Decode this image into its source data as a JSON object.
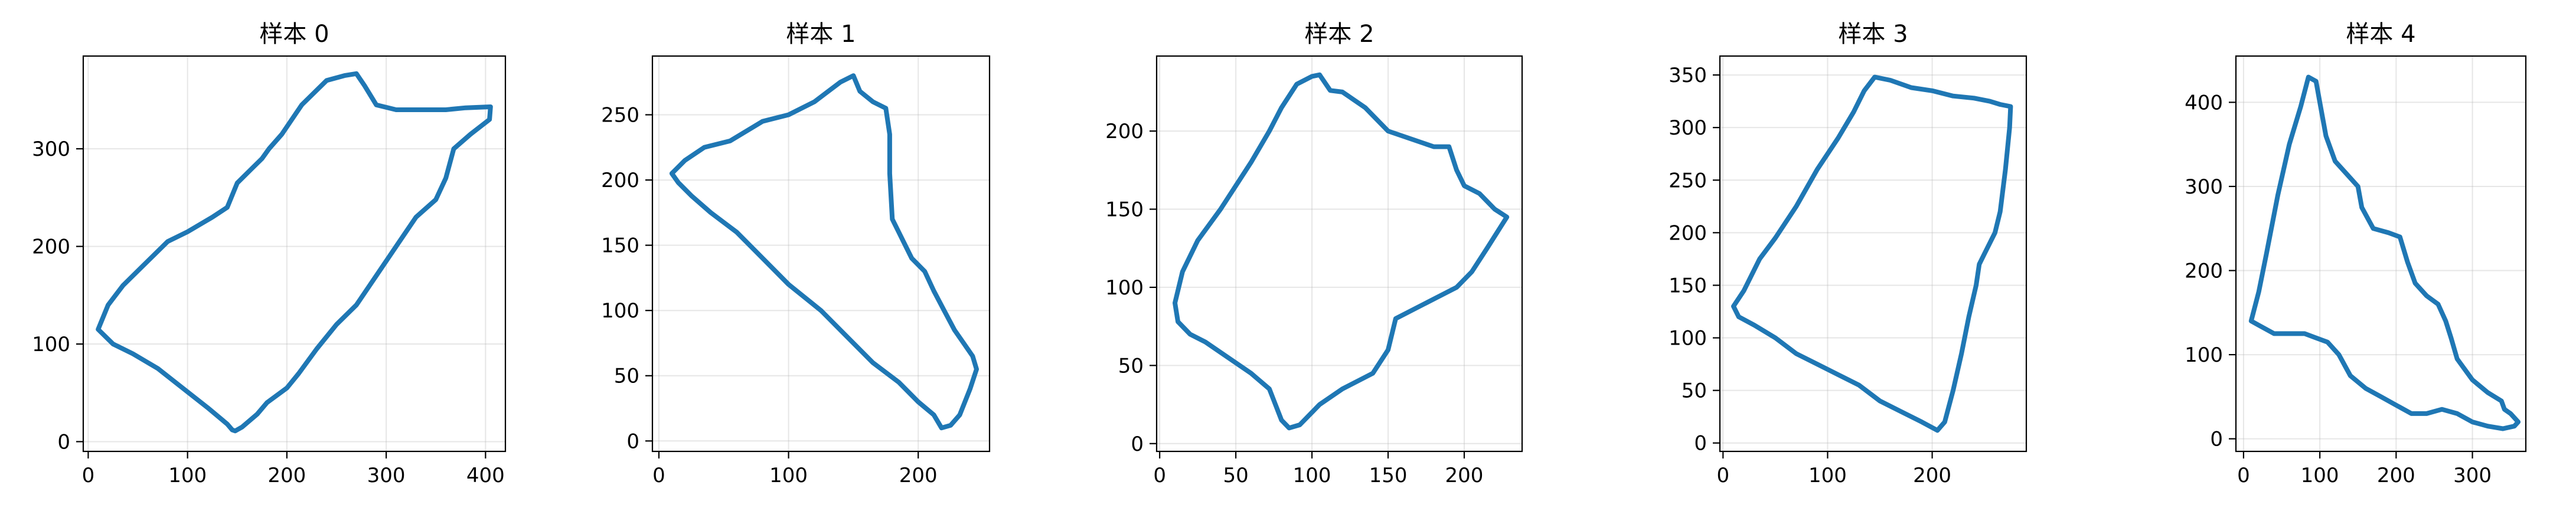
{
  "figure": {
    "accent_color": "#1f77b4"
  },
  "chart_data": [
    {
      "type": "line",
      "title": "样本 0",
      "xlim": [
        -5,
        420
      ],
      "ylim": [
        -10,
        395
      ],
      "xticks": [
        0,
        100,
        200,
        300,
        400
      ],
      "yticks": [
        0,
        100,
        200,
        300
      ],
      "grid": true,
      "series": [
        {
          "color": "#1f77b4",
          "x": [
            10,
            20,
            35,
            55,
            80,
            100,
            125,
            140,
            150,
            165,
            175,
            182,
            195,
            215,
            240,
            258,
            270,
            278,
            290,
            310,
            330,
            360,
            380,
            405,
            404,
            385,
            368,
            360,
            350,
            330,
            310,
            290,
            270,
            250,
            230,
            212,
            200,
            180,
            170,
            155,
            148,
            145,
            140,
            120,
            95,
            70,
            45,
            25,
            10
          ],
          "y": [
            115,
            140,
            160,
            180,
            205,
            215,
            230,
            240,
            265,
            280,
            290,
            300,
            315,
            345,
            370,
            375,
            377,
            365,
            345,
            340,
            340,
            340,
            342,
            343,
            330,
            315,
            300,
            270,
            248,
            230,
            200,
            170,
            140,
            120,
            95,
            70,
            55,
            40,
            28,
            15,
            11,
            12,
            18,
            35,
            55,
            75,
            90,
            100,
            115
          ]
        }
      ]
    },
    {
      "type": "line",
      "title": "样本 1",
      "xlim": [
        -5,
        255
      ],
      "ylim": [
        -8,
        295
      ],
      "xticks": [
        0,
        100,
        200
      ],
      "yticks": [
        0,
        50,
        100,
        150,
        200,
        250
      ],
      "grid": true,
      "series": [
        {
          "color": "#1f77b4",
          "x": [
            10,
            20,
            35,
            55,
            80,
            100,
            120,
            140,
            150,
            155,
            165,
            175,
            178,
            178,
            180,
            185,
            195,
            205,
            212,
            220,
            228,
            235,
            242,
            245,
            240,
            232,
            225,
            218,
            212,
            200,
            185,
            165,
            145,
            125,
            100,
            80,
            60,
            40,
            25,
            15,
            10
          ],
          "y": [
            205,
            215,
            225,
            230,
            245,
            250,
            260,
            275,
            280,
            268,
            260,
            255,
            235,
            205,
            170,
            160,
            140,
            130,
            115,
            100,
            85,
            75,
            65,
            55,
            40,
            20,
            12,
            10,
            20,
            30,
            45,
            60,
            80,
            100,
            120,
            140,
            160,
            175,
            188,
            198,
            205
          ]
        }
      ]
    },
    {
      "type": "line",
      "title": "样本 2",
      "xlim": [
        -2,
        238
      ],
      "ylim": [
        -5,
        248
      ],
      "xticks": [
        0,
        50,
        100,
        150,
        200
      ],
      "yticks": [
        0,
        50,
        100,
        150,
        200
      ],
      "grid": true,
      "series": [
        {
          "color": "#1f77b4",
          "x": [
            10,
            15,
            25,
            40,
            50,
            60,
            72,
            80,
            90,
            100,
            105,
            112,
            120,
            135,
            150,
            165,
            180,
            190,
            195,
            200,
            210,
            220,
            228,
            215,
            205,
            195,
            175,
            155,
            150,
            140,
            120,
            105,
            100,
            92,
            85,
            80,
            72,
            60,
            45,
            30,
            20,
            12,
            10
          ],
          "y": [
            90,
            110,
            130,
            150,
            165,
            180,
            200,
            215,
            230,
            235,
            236,
            226,
            225,
            215,
            200,
            195,
            190,
            190,
            175,
            165,
            160,
            150,
            145,
            125,
            110,
            100,
            90,
            80,
            60,
            45,
            35,
            25,
            20,
            12,
            10,
            15,
            35,
            45,
            55,
            65,
            70,
            78,
            90
          ]
        }
      ]
    },
    {
      "type": "line",
      "title": "样本 3",
      "xlim": [
        -3,
        290
      ],
      "ylim": [
        -8,
        368
      ],
      "xticks": [
        0,
        100,
        200
      ],
      "yticks": [
        0,
        50,
        100,
        150,
        200,
        250,
        300,
        350
      ],
      "grid": true,
      "series": [
        {
          "color": "#1f77b4",
          "x": [
            10,
            20,
            35,
            50,
            70,
            90,
            110,
            125,
            135,
            145,
            160,
            180,
            200,
            220,
            240,
            255,
            265,
            275,
            274,
            270,
            265,
            260,
            250,
            245,
            242,
            235,
            228,
            220,
            212,
            205,
            190,
            170,
            150,
            130,
            110,
            90,
            70,
            50,
            30,
            15,
            10
          ],
          "y": [
            130,
            145,
            175,
            195,
            225,
            260,
            290,
            315,
            335,
            348,
            345,
            338,
            335,
            330,
            328,
            325,
            322,
            320,
            300,
            260,
            220,
            200,
            180,
            170,
            150,
            120,
            85,
            50,
            20,
            12,
            20,
            30,
            40,
            55,
            65,
            75,
            85,
            100,
            112,
            120,
            130
          ]
        }
      ]
    },
    {
      "type": "line",
      "title": "样本 4",
      "xlim": [
        -10,
        370
      ],
      "ylim": [
        -15,
        455
      ],
      "xticks": [
        0,
        100,
        200,
        300
      ],
      "yticks": [
        0,
        100,
        200,
        300,
        400
      ],
      "grid": true,
      "series": [
        {
          "color": "#1f77b4",
          "x": [
            10,
            20,
            30,
            45,
            60,
            75,
            85,
            95,
            100,
            108,
            120,
            140,
            150,
            155,
            170,
            190,
            205,
            215,
            225,
            240,
            255,
            265,
            272,
            280,
            300,
            320,
            338,
            342,
            350,
            360,
            355,
            340,
            320,
            300,
            280,
            260,
            240,
            220,
            200,
            180,
            160,
            140,
            125,
            110,
            95,
            80,
            60,
            40,
            20,
            10
          ],
          "y": [
            140,
            175,
            220,
            290,
            350,
            395,
            430,
            425,
            400,
            360,
            330,
            310,
            300,
            275,
            250,
            245,
            240,
            210,
            185,
            170,
            160,
            140,
            120,
            95,
            70,
            55,
            45,
            35,
            30,
            20,
            15,
            12,
            15,
            20,
            30,
            35,
            30,
            30,
            40,
            50,
            60,
            75,
            100,
            115,
            120,
            125,
            125,
            125,
            135,
            140
          ]
        }
      ]
    }
  ]
}
